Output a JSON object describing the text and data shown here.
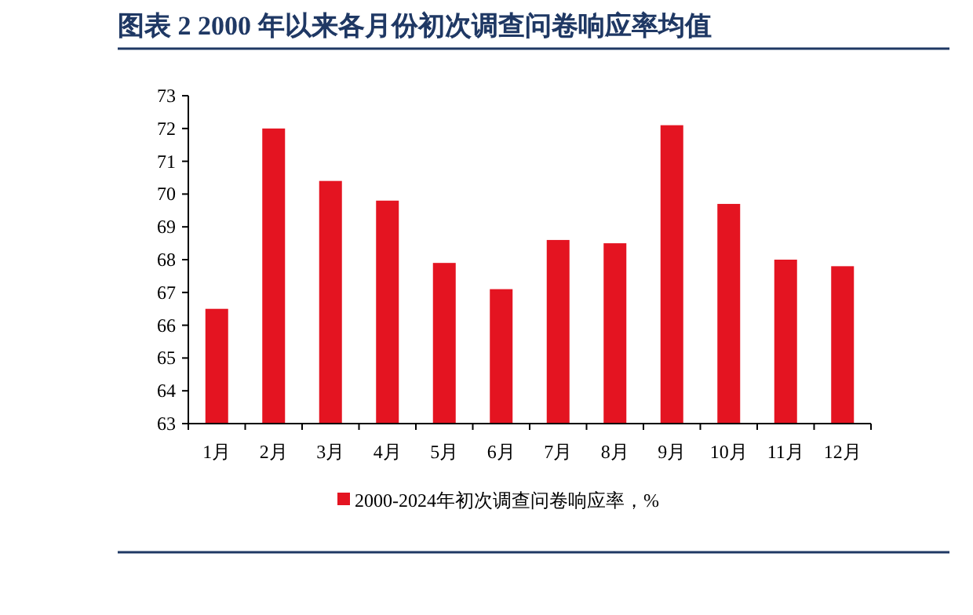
{
  "chart_data": {
    "type": "bar",
    "title": "图表 2  2000 年以来各月份初次调查问卷响应率均值",
    "categories": [
      "1月",
      "2月",
      "3月",
      "4月",
      "5月",
      "6月",
      "7月",
      "8月",
      "9月",
      "10月",
      "11月",
      "12月"
    ],
    "series": [
      {
        "name": "2000-2024年初次调查问卷响应率，%",
        "color": "#e41421",
        "values": [
          66.5,
          72.0,
          70.4,
          69.8,
          67.9,
          67.1,
          68.6,
          68.5,
          72.1,
          69.7,
          68.0,
          67.8
        ]
      }
    ],
    "ylim": [
      63,
      73
    ],
    "yticks": [
      63,
      64,
      65,
      66,
      67,
      68,
      69,
      70,
      71,
      72,
      73
    ],
    "grid": false,
    "legend": "bottom"
  }
}
